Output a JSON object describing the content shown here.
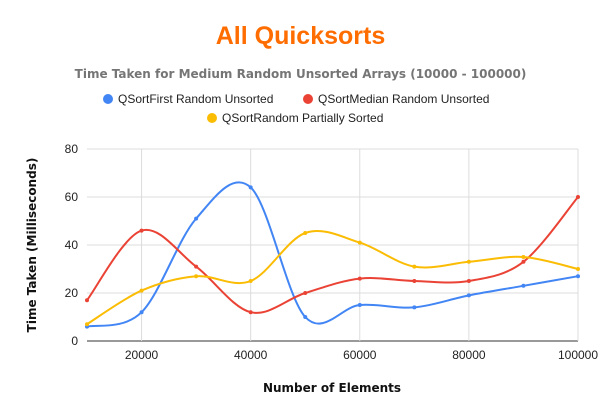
{
  "chart_data": {
    "type": "line",
    "title": "All Quicksorts",
    "subtitle": "Time Taken for Medium Random Unsorted Arrays (10000 - 100000)",
    "xlabel": "Number of Elements",
    "ylabel": "Time Taken (Milliseconds)",
    "xlim": [
      10000,
      100000
    ],
    "ylim": [
      0,
      80
    ],
    "x_ticks": [
      20000,
      40000,
      60000,
      80000,
      100000
    ],
    "y_ticks": [
      0,
      20,
      40,
      60,
      80
    ],
    "grid": true,
    "legend_position": "top",
    "x": [
      10000,
      20000,
      30000,
      40000,
      50000,
      60000,
      70000,
      80000,
      90000,
      100000
    ],
    "series": [
      {
        "name": "QSortFirst Random Unsorted",
        "color": "#4285f4",
        "values": [
          6,
          12,
          51,
          64,
          10,
          15,
          14,
          19,
          23,
          27
        ]
      },
      {
        "name": "QSortMedian Random Unsorted",
        "color": "#ea4335",
        "values": [
          17,
          46,
          31,
          12,
          20,
          26,
          25,
          25,
          33,
          60
        ]
      },
      {
        "name": "QSortRandom Partially Sorted",
        "color": "#fbbc04",
        "values": [
          7,
          21,
          27,
          25,
          45,
          41,
          31,
          33,
          35,
          30
        ]
      }
    ]
  }
}
